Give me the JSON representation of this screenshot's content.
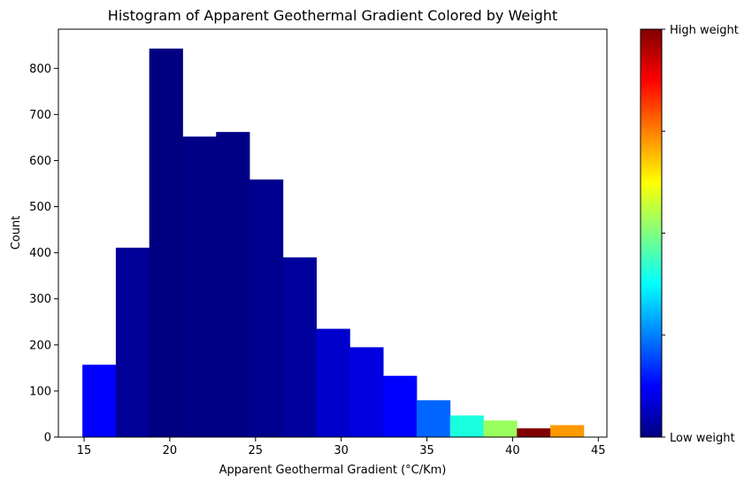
{
  "chart_data": {
    "type": "bar",
    "title": "Histogram of Apparent Geothermal Gradient Colored by Weight",
    "xlabel": "Apparent Geothermal Gradient (°C/Km)",
    "ylabel": "Count",
    "xlim": [
      13.5,
      45.5
    ],
    "ylim": [
      0,
      885
    ],
    "xticks": [
      15,
      20,
      25,
      30,
      35,
      40,
      45
    ],
    "yticks": [
      0,
      100,
      200,
      300,
      400,
      500,
      600,
      700,
      800
    ],
    "bin_edges": [
      14.9,
      16.85,
      18.8,
      20.75,
      22.7,
      24.65,
      26.6,
      28.55,
      30.5,
      32.45,
      34.4,
      36.35,
      38.3,
      40.25,
      42.2,
      44.15
    ],
    "bins": [
      {
        "x0": 14.9,
        "x1": 16.85,
        "count": 157,
        "color": "#0000ff"
      },
      {
        "x0": 16.85,
        "x1": 18.8,
        "count": 411,
        "color": "#000098"
      },
      {
        "x0": 18.8,
        "x1": 20.75,
        "count": 843,
        "color": "#000080"
      },
      {
        "x0": 20.75,
        "x1": 22.7,
        "count": 652,
        "color": "#000087"
      },
      {
        "x0": 22.7,
        "x1": 24.65,
        "count": 662,
        "color": "#000086"
      },
      {
        "x0": 24.65,
        "x1": 26.6,
        "count": 559,
        "color": "#00008e"
      },
      {
        "x0": 26.6,
        "x1": 28.55,
        "count": 390,
        "color": "#00009d"
      },
      {
        "x0": 28.55,
        "x1": 30.5,
        "count": 235,
        "color": "#0000cc"
      },
      {
        "x0": 30.5,
        "x1": 32.45,
        "count": 195,
        "color": "#0000e0"
      },
      {
        "x0": 32.45,
        "x1": 34.4,
        "count": 133,
        "color": "#0000ff"
      },
      {
        "x0": 34.4,
        "x1": 36.35,
        "count": 80,
        "color": "#0066ff"
      },
      {
        "x0": 36.35,
        "x1": 38.3,
        "count": 47,
        "color": "#1affe0"
      },
      {
        "x0": 38.3,
        "x1": 40.25,
        "count": 36,
        "color": "#99ff5e"
      },
      {
        "x0": 40.25,
        "x1": 42.2,
        "count": 19,
        "color": "#800000"
      },
      {
        "x0": 42.2,
        "x1": 44.15,
        "count": 26,
        "color": "#ff9900"
      }
    ],
    "colorbar": {
      "colormap": "jet",
      "high_label": "High weight",
      "low_label": "Low weight",
      "stops": [
        "#000080",
        "#0000ff",
        "#0080ff",
        "#00ffff",
        "#80ff80",
        "#ffff00",
        "#ff8000",
        "#ff0000",
        "#800000"
      ]
    },
    "grid": false
  }
}
